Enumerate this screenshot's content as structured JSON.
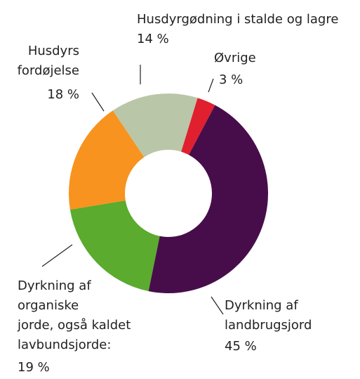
{
  "chart_data": {
    "type": "donut",
    "categories": [
      "Øvrige",
      "Dyrkning af\nlandbrugsjord",
      "Dyrkning af\norganiske\njorde, også kaldet\nlavbundsjorde:",
      "Husdyrs\nfordøjelse",
      "Husdyrgødning i stalde og lagre"
    ],
    "values": [
      3,
      45,
      19,
      18,
      14
    ],
    "value_labels": [
      "3 %",
      "45 %",
      "19 %",
      "18 %",
      "14 %"
    ],
    "colors": [
      "#e0202e",
      "#470d4b",
      "#5aab2e",
      "#f7931e",
      "#b9c6a8"
    ]
  }
}
